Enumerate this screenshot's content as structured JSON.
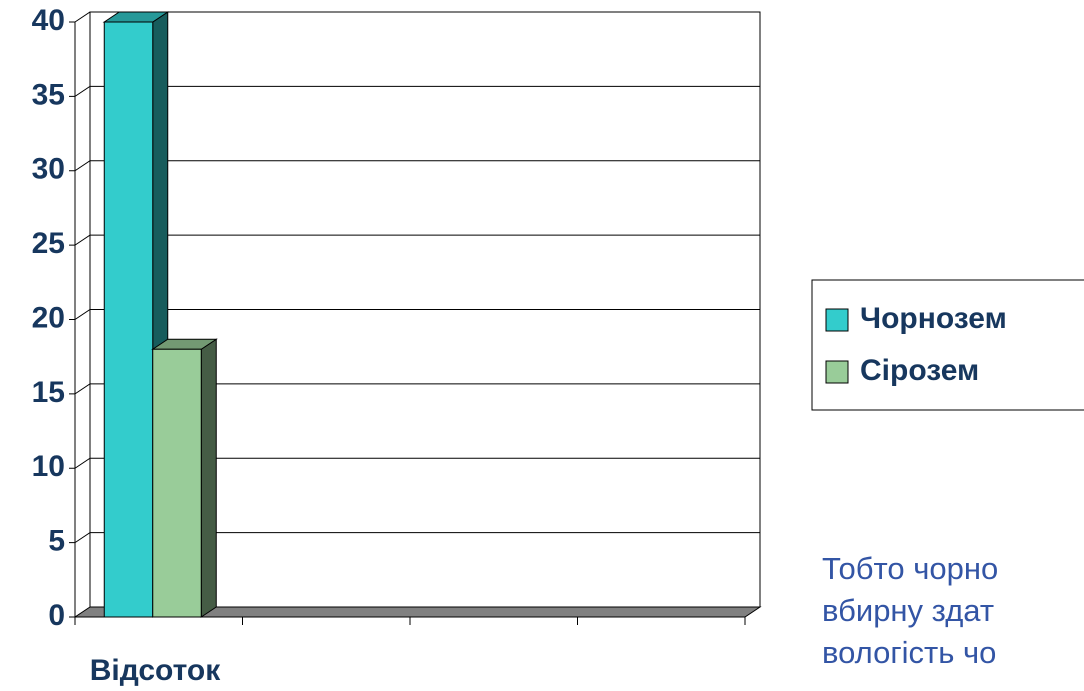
{
  "chart_data": {
    "type": "bar3d",
    "categories": [
      "Відсоток",
      null,
      null,
      null
    ],
    "series": [
      {
        "name": "Чорнозем",
        "color": "#33cccc",
        "values": [
          40,
          null,
          null,
          null
        ]
      },
      {
        "name": "Сірозем",
        "color": "#99cc99",
        "values": [
          18,
          null,
          null,
          null
        ]
      }
    ],
    "ylim": [
      0,
      40
    ],
    "yticks": [
      0,
      5,
      10,
      15,
      20,
      25,
      30,
      35,
      40
    ],
    "grid": true,
    "legend": "right"
  },
  "note": {
    "lines": [
      "Тобто чорно",
      "вбирну здат",
      "вологість чо"
    ]
  }
}
